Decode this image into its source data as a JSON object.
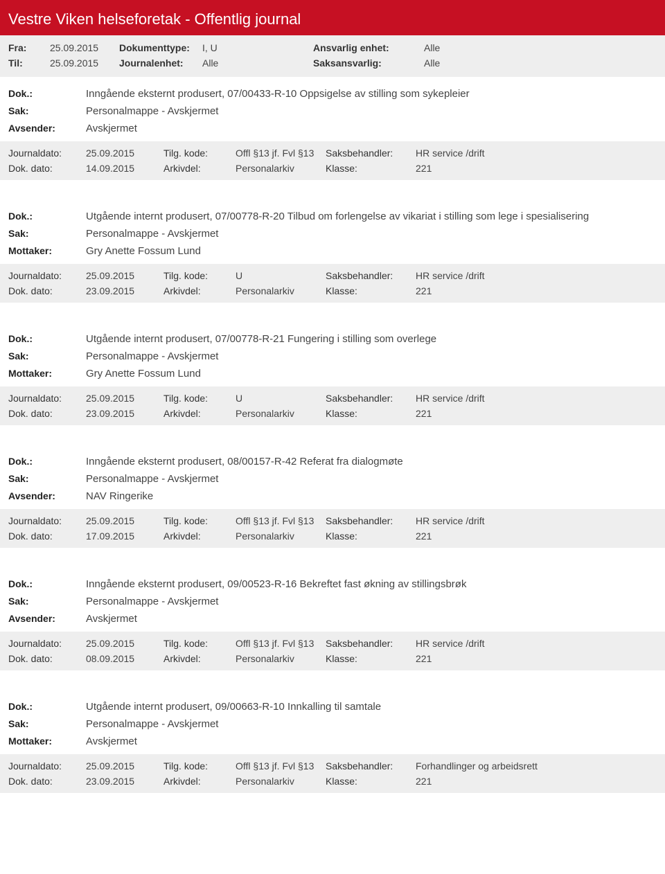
{
  "header": {
    "title": "Vestre Viken helseforetak - Offentlig journal",
    "fra_label": "Fra:",
    "fra_value": "25.09.2015",
    "til_label": "Til:",
    "til_value": "25.09.2015",
    "dokumenttype_label": "Dokumenttype:",
    "dokumenttype_value": "I, U",
    "journalenhet_label": "Journalenhet:",
    "journalenhet_value": "Alle",
    "ansvarlig_label": "Ansvarlig enhet:",
    "ansvarlig_value": "Alle",
    "saksansvarlig_label": "Saksansvarlig:",
    "saksansvarlig_value": "Alle"
  },
  "labels": {
    "dok": "Dok.:",
    "sak": "Sak:",
    "avsender": "Avsender:",
    "mottaker": "Mottaker:",
    "journaldato": "Journaldato:",
    "dokdato": "Dok. dato:",
    "tilgkode": "Tilg. kode:",
    "arkivdel": "Arkivdel:",
    "saksbehandler": "Saksbehandler:",
    "klasse": "Klasse:"
  },
  "entries": [
    {
      "dok": "Inngående eksternt produsert, 07/00433-R-10 Oppsigelse av stilling som sykepleier",
      "sak": "Personalmappe - Avskjermet",
      "party_label": "Avsender:",
      "party_value": "Avskjermet",
      "journaldato": "25.09.2015",
      "dokdato": "14.09.2015",
      "tilgkode": "Offl §13 jf. Fvl §13",
      "arkivdel": "Personalarkiv",
      "saksbehandler": "HR service /drift",
      "klasse": "221"
    },
    {
      "dok": "Utgående internt produsert, 07/00778-R-20 Tilbud om forlengelse av vikariat i stilling som lege i spesialisering",
      "sak": "Personalmappe - Avskjermet",
      "party_label": "Mottaker:",
      "party_value": "Gry Anette Fossum Lund",
      "journaldato": "25.09.2015",
      "dokdato": "23.09.2015",
      "tilgkode": "U",
      "arkivdel": "Personalarkiv",
      "saksbehandler": "HR service /drift",
      "klasse": "221"
    },
    {
      "dok": "Utgående internt produsert, 07/00778-R-21 Fungering i stilling som overlege",
      "sak": "Personalmappe - Avskjermet",
      "party_label": "Mottaker:",
      "party_value": "Gry Anette Fossum Lund",
      "journaldato": "25.09.2015",
      "dokdato": "23.09.2015",
      "tilgkode": "U",
      "arkivdel": "Personalarkiv",
      "saksbehandler": "HR service /drift",
      "klasse": "221"
    },
    {
      "dok": "Inngående eksternt produsert, 08/00157-R-42 Referat fra dialogmøte",
      "sak": "Personalmappe - Avskjermet",
      "party_label": "Avsender:",
      "party_value": "NAV Ringerike",
      "journaldato": "25.09.2015",
      "dokdato": "17.09.2015",
      "tilgkode": "Offl §13 jf. Fvl §13",
      "arkivdel": "Personalarkiv",
      "saksbehandler": "HR service /drift",
      "klasse": "221"
    },
    {
      "dok": "Inngående eksternt produsert, 09/00523-R-16 Bekreftet fast økning av stillingsbrøk",
      "sak": "Personalmappe - Avskjermet",
      "party_label": "Avsender:",
      "party_value": "Avskjermet",
      "journaldato": "25.09.2015",
      "dokdato": "08.09.2015",
      "tilgkode": "Offl §13 jf. Fvl §13",
      "arkivdel": "Personalarkiv",
      "saksbehandler": "HR service /drift",
      "klasse": "221"
    },
    {
      "dok": "Utgående internt produsert, 09/00663-R-10 Innkalling til samtale",
      "sak": "Personalmappe - Avskjermet",
      "party_label": "Mottaker:",
      "party_value": "Avskjermet",
      "journaldato": "25.09.2015",
      "dokdato": "23.09.2015",
      "tilgkode": "Offl §13 jf. Fvl §13",
      "arkivdel": "Personalarkiv",
      "saksbehandler": "Forhandlinger og arbeidsrett",
      "klasse": "221"
    }
  ],
  "style": {
    "accent": "#c61023",
    "meta_bg": "#eeeeee",
    "text": "#333333"
  }
}
